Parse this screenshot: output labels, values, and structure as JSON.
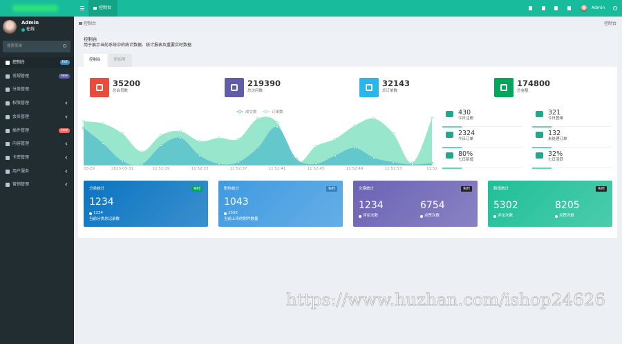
{
  "sidebar": {
    "user": {
      "name": "Admin",
      "status": "在线"
    },
    "search_placeholder": "搜索菜单",
    "menu": [
      {
        "label": "控制台",
        "badge": "hot",
        "badge_color": "#3c8dbc",
        "active": true
      },
      {
        "label": "常规管理",
        "badge": "new",
        "badge_color": "#605ca8"
      },
      {
        "label": "分类管理"
      },
      {
        "label": "权限管理",
        "has_children": true
      },
      {
        "label": "会员管理",
        "has_children": true
      },
      {
        "label": "插件管理",
        "badge": "new",
        "badge_color": "#f56954"
      },
      {
        "label": "内容管理",
        "has_children": true
      },
      {
        "label": "卡密管理",
        "has_children": true
      },
      {
        "label": "用户服务",
        "has_children": true
      },
      {
        "label": "营销管理",
        "has_children": true
      }
    ]
  },
  "topbar": {
    "tab": "控制台",
    "user": "Admin"
  },
  "breadcrumb": {
    "left": "控制台",
    "right": "控制台"
  },
  "panel": {
    "title": "控制台",
    "subtitle": "用于展示当前系统中的统计数据、统计报表及重要实时数据",
    "tabs": [
      "控制台",
      "附加项"
    ]
  },
  "stats": [
    {
      "value": "35200",
      "label": "总会员数",
      "color": "#e74c3c"
    },
    {
      "value": "219390",
      "label": "总访问数",
      "color": "#605ca8"
    },
    {
      "value": "32143",
      "label": "总订单数",
      "color": "#29b6e8"
    },
    {
      "value": "174800",
      "label": "总金额",
      "color": "#00a65a"
    }
  ],
  "chart_data": {
    "type": "area",
    "categories": [
      "03-29",
      null,
      "2023-03-31",
      null,
      "11:52:29",
      null,
      "11:52:33",
      null,
      "11:52:37",
      null,
      "11:52:41",
      null,
      "11:52:45",
      null,
      "11:52:49",
      null,
      "11:52:53",
      null,
      "11:52"
    ],
    "series": [
      {
        "name": "成交数",
        "color": "#5fc4cc",
        "values": [
          68,
          40,
          8,
          2,
          36,
          50,
          18,
          3,
          6,
          32,
          70,
          12,
          3,
          18,
          32,
          14,
          6,
          2,
          4
        ]
      },
      {
        "name": "订单数",
        "color": "#8fe5c9",
        "values": [
          80,
          76,
          58,
          25,
          55,
          62,
          44,
          50,
          48,
          85,
          78,
          6,
          35,
          48,
          72,
          85,
          58,
          5,
          86
        ]
      }
    ],
    "ylim": [
      0,
      100
    ]
  },
  "mini_stats": [
    {
      "value": "430",
      "label": "今日注册"
    },
    {
      "value": "321",
      "label": "今日登录"
    },
    {
      "value": "2324",
      "label": "今日订单"
    },
    {
      "value": "132",
      "label": "未处理订单"
    },
    {
      "value": "80%",
      "label": "七日新增"
    },
    {
      "value": "32%",
      "label": "七日活跃"
    }
  ],
  "cards": [
    {
      "title": "分类统计",
      "badge": "实时",
      "badge_color": "#00a65a",
      "color": "#0a74c1",
      "value": "1234",
      "sub_value": "1234",
      "note": "当前分类总记录数"
    },
    {
      "title": "附件统计",
      "badge": "实时",
      "badge_color": "#2f7fc0",
      "color": "#3f9ae0",
      "value": "1043",
      "sub_value": "2592",
      "note": "当前上传的附件数量"
    },
    {
      "title": "文章统计",
      "badge": "实时",
      "badge_color": "#222222",
      "color": "#6b63b5",
      "values": [
        "1234",
        "6754"
      ],
      "notes": [
        "评论次数",
        "点赞次数"
      ]
    },
    {
      "title": "新增统计",
      "badge": "实时",
      "badge_color": "#222222",
      "color": "#1fbf98",
      "values": [
        "5302",
        "8205"
      ],
      "notes": [
        "评论次数",
        "点赞次数"
      ]
    }
  ],
  "watermark": "https://www.huzhan.com/ishop24626"
}
